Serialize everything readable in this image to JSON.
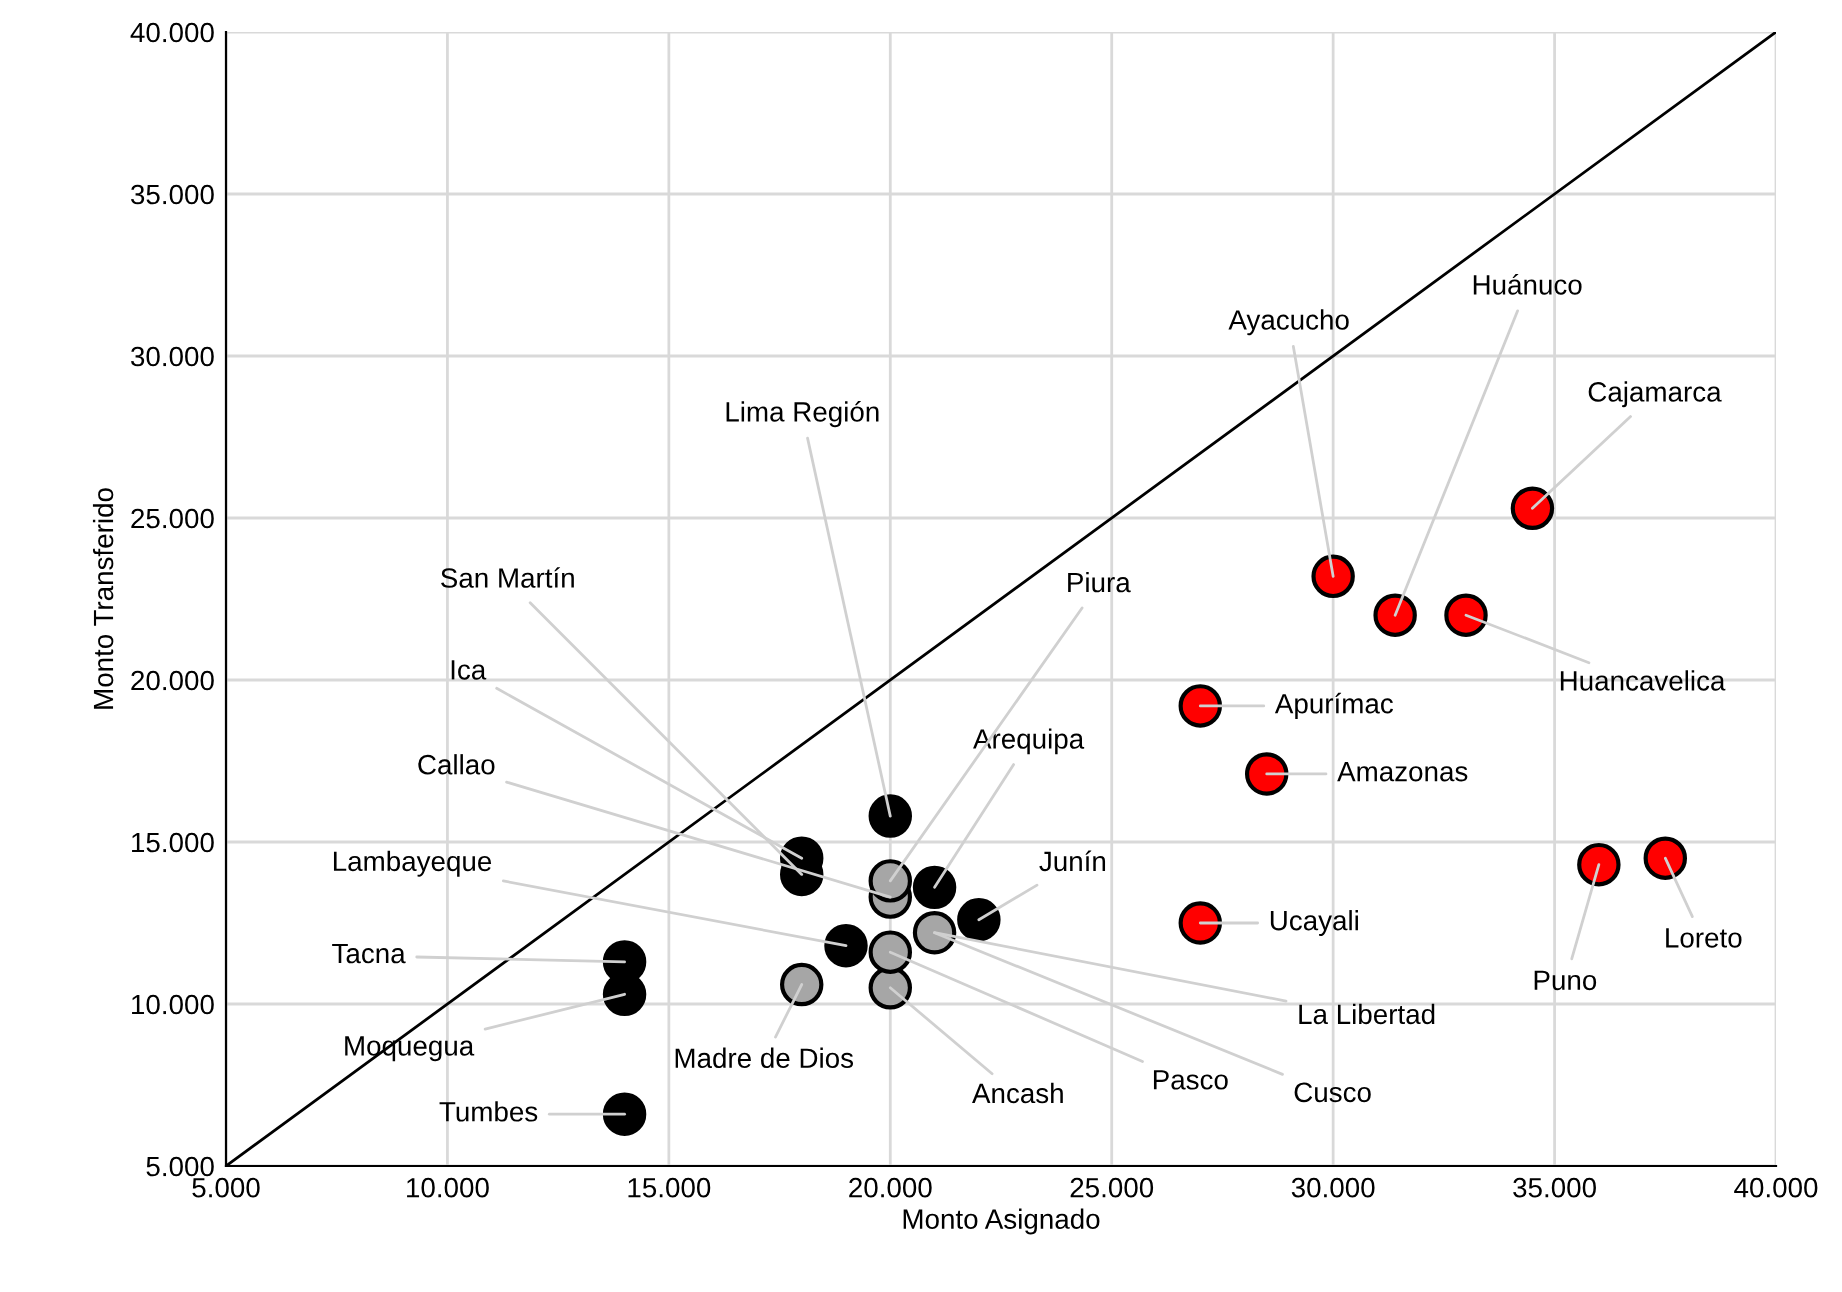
{
  "chart_data": {
    "type": "scatter",
    "xlabel": "Monto Asignado",
    "ylabel": "Monto Transferido",
    "xlim": [
      5000,
      40000
    ],
    "ylim": [
      5000,
      40000
    ],
    "xticks": [
      {
        "value": 5000,
        "label": "5.000"
      },
      {
        "value": 10000,
        "label": "10.000"
      },
      {
        "value": 15000,
        "label": "15.000"
      },
      {
        "value": 20000,
        "label": "20.000"
      },
      {
        "value": 25000,
        "label": "25.000"
      },
      {
        "value": 30000,
        "label": "30.000"
      },
      {
        "value": 35000,
        "label": "35.000"
      },
      {
        "value": 40000,
        "label": "40.000"
      }
    ],
    "yticks": [
      {
        "value": 5000,
        "label": "5.000"
      },
      {
        "value": 10000,
        "label": "10.000"
      },
      {
        "value": 15000,
        "label": "15.000"
      },
      {
        "value": 20000,
        "label": "20.000"
      },
      {
        "value": 25000,
        "label": "25.000"
      },
      {
        "value": 30000,
        "label": "30.000"
      },
      {
        "value": 35000,
        "label": "35.000"
      },
      {
        "value": 40000,
        "label": "40.000"
      }
    ],
    "grid": true,
    "marker": "circle",
    "legend": false,
    "series": [
      {
        "type": "line",
        "marker": "none",
        "color": "#000000",
        "x": [
          5000,
          40000
        ],
        "values": [
          5000,
          40000
        ]
      },
      {
        "x": [
          20000,
          18000,
          18000,
          20000,
          19000,
          14000,
          14000,
          14000,
          18000,
          20000,
          20000,
          21000,
          22000,
          21000,
          20000,
          30000,
          31400,
          34500,
          33000,
          27000,
          28500,
          27000,
          36000,
          37500
        ],
        "values": [
          15800,
          14000,
          14500,
          13300,
          11800,
          11300,
          10300,
          6600,
          10600,
          10500,
          11600,
          12200,
          12600,
          13600,
          13800,
          23200,
          22000,
          25300,
          22000,
          19200,
          17100,
          12500,
          14300,
          14500
        ],
        "colors": [
          "#000000",
          "#000000",
          "#000000",
          "#a6a6a6",
          "#000000",
          "#000000",
          "#000000",
          "#000000",
          "#a6a6a6",
          "#a6a6a6",
          "#a6a6a6",
          "#a6a6a6",
          "#000000",
          "#000000",
          "#a6a6a6",
          "#ff0000",
          "#ff0000",
          "#ff0000",
          "#ff0000",
          "#ff0000",
          "#ff0000",
          "#ff0000",
          "#ff0000",
          "#ff0000"
        ]
      }
    ],
    "annotations": [
      {
        "text": "Lima Región",
        "x": 20000,
        "y": 15800
      },
      {
        "text": "San Martín",
        "x": 18000,
        "y": 14000
      },
      {
        "text": "Ica",
        "x": 18000,
        "y": 14500
      },
      {
        "text": "Callao",
        "x": 20000,
        "y": 13300
      },
      {
        "text": "Lambayeque",
        "x": 19000,
        "y": 11800
      },
      {
        "text": "Tacna",
        "x": 14000,
        "y": 11300
      },
      {
        "text": "Moquegua",
        "x": 14000,
        "y": 10300
      },
      {
        "text": "Tumbes",
        "x": 14000,
        "y": 6600
      },
      {
        "text": "Madre de Dios",
        "x": 18000,
        "y": 10600
      },
      {
        "text": "Ancash",
        "x": 20000,
        "y": 10500
      },
      {
        "text": "Pasco",
        "x": 20000,
        "y": 11600
      },
      {
        "text": "Cusco",
        "x": 21000,
        "y": 12200
      },
      {
        "text": "La Libertad",
        "x": 21000,
        "y": 12200
      },
      {
        "text": "Junín",
        "x": 22000,
        "y": 12600
      },
      {
        "text": "Arequipa",
        "x": 21000,
        "y": 13600
      },
      {
        "text": "Piura",
        "x": 20000,
        "y": 13800
      },
      {
        "text": "Ayacucho",
        "x": 30000,
        "y": 23200
      },
      {
        "text": "Huánuco",
        "x": 31400,
        "y": 22000
      },
      {
        "text": "Cajamarca",
        "x": 34500,
        "y": 25300
      },
      {
        "text": "Huancavelica",
        "x": 33000,
        "y": 22000
      },
      {
        "text": "Apurímac",
        "x": 27000,
        "y": 19200
      },
      {
        "text": "Amazonas",
        "x": 28500,
        "y": 17100
      },
      {
        "text": "Ucayali",
        "x": 27000,
        "y": 12500
      },
      {
        "text": "Puno",
        "x": 36000,
        "y": 14300
      },
      {
        "text": "Loreto",
        "x": 37500,
        "y": 14500
      }
    ]
  }
}
